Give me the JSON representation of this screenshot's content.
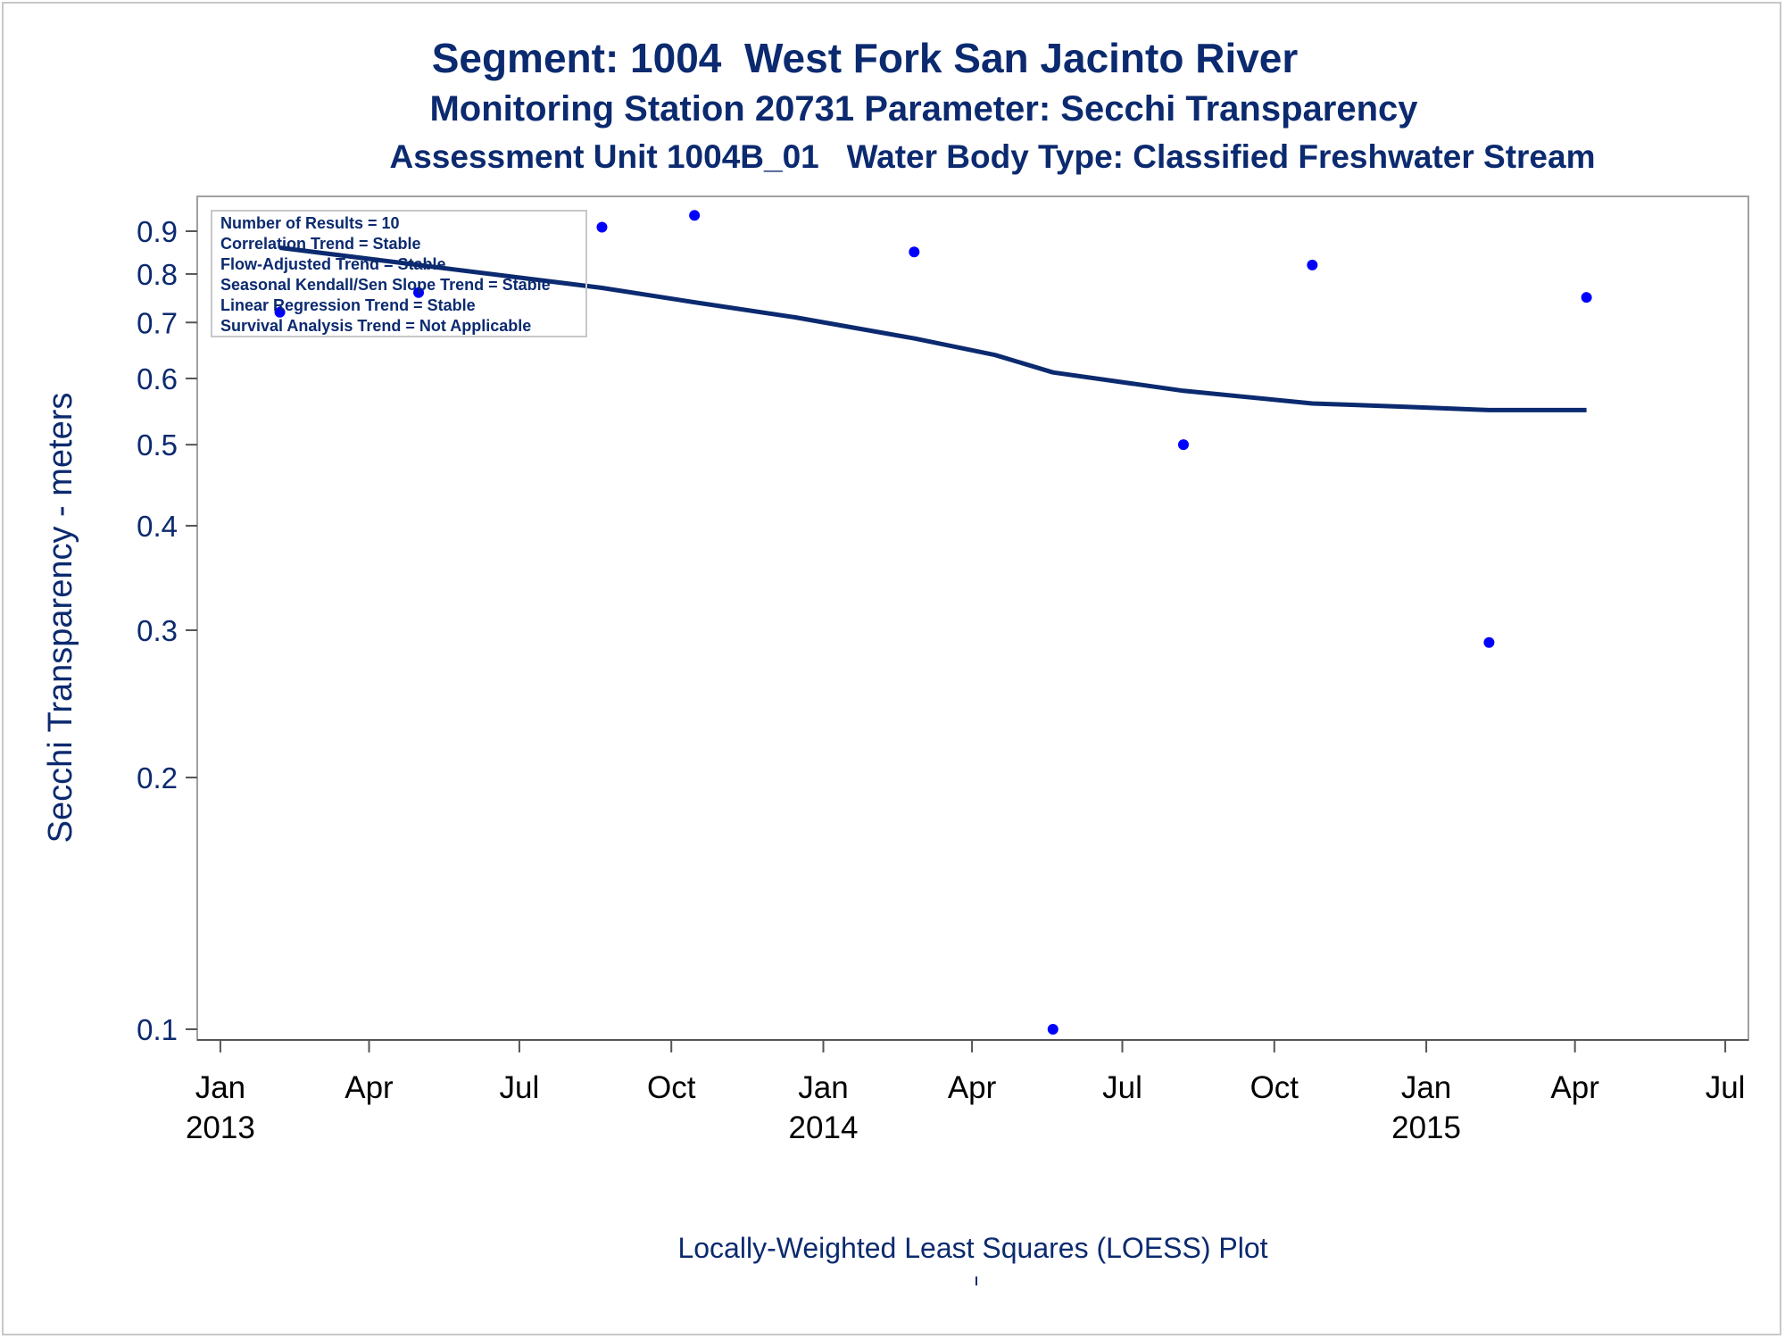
{
  "titles": {
    "line1": "Segment: 1004  West Fork San Jacinto River",
    "line2": "Monitoring Station 20731 Parameter: Secchi Transparency",
    "line3": "Assessment Unit 1004B_01   Water Body Type: Classified Freshwater Stream"
  },
  "footnote": "Locally-Weighted Least Squares (LOESS) Plot",
  "info_box": [
    "Number of Results = 10",
    "Correlation Trend = Stable",
    "Flow-Adjusted Trend = Stable",
    "Seasonal Kendall/Sen Slope Trend = Stable",
    "Linear Regression Trend = Stable",
    "Survival Analysis Trend = Not Applicable"
  ],
  "colors": {
    "title": "#0b2a6f",
    "points": "#0000ff",
    "loess": "#0b2a6f",
    "axis": "#a0a0a0"
  },
  "chart_data": {
    "type": "scatter",
    "ylabel": "Secchi Transparency - meters",
    "yscale": "log",
    "ylim": [
      0.1,
      0.95
    ],
    "xlim": [
      "2012-12-18",
      "2015-07-15"
    ],
    "x_ticks": [
      {
        "date": "2013-01-01",
        "label": "Jan",
        "year": "2013"
      },
      {
        "date": "2013-04-01",
        "label": "Apr",
        "year": ""
      },
      {
        "date": "2013-07-01",
        "label": "Jul",
        "year": ""
      },
      {
        "date": "2013-10-01",
        "label": "Oct",
        "year": ""
      },
      {
        "date": "2014-01-01",
        "label": "Jan",
        "year": "2014"
      },
      {
        "date": "2014-04-01",
        "label": "Apr",
        "year": ""
      },
      {
        "date": "2014-07-01",
        "label": "Jul",
        "year": ""
      },
      {
        "date": "2014-10-01",
        "label": "Oct",
        "year": ""
      },
      {
        "date": "2015-01-01",
        "label": "Jan",
        "year": "2015"
      },
      {
        "date": "2015-04-01",
        "label": "Apr",
        "year": ""
      },
      {
        "date": "2015-07-01",
        "label": "Jul",
        "year": ""
      }
    ],
    "y_ticks": [
      0.1,
      0.2,
      0.3,
      0.4,
      0.5,
      0.6,
      0.7,
      0.8,
      0.9
    ],
    "grid": false,
    "legend": "top-left",
    "points": [
      {
        "date": "2013-02-06",
        "value": 0.72
      },
      {
        "date": "2013-05-01",
        "value": 0.76
      },
      {
        "date": "2013-08-20",
        "value": 0.91
      },
      {
        "date": "2013-10-15",
        "value": 0.94
      },
      {
        "date": "2014-02-25",
        "value": 0.85
      },
      {
        "date": "2014-05-20",
        "value": 0.1
      },
      {
        "date": "2014-08-07",
        "value": 0.5
      },
      {
        "date": "2014-10-24",
        "value": 0.82
      },
      {
        "date": "2015-02-08",
        "value": 0.29
      },
      {
        "date": "2015-04-08",
        "value": 0.75
      }
    ],
    "loess": [
      {
        "date": "2013-02-06",
        "value": 0.86
      },
      {
        "date": "2013-05-01",
        "value": 0.82
      },
      {
        "date": "2013-08-20",
        "value": 0.77
      },
      {
        "date": "2013-10-15",
        "value": 0.74
      },
      {
        "date": "2013-12-15",
        "value": 0.71
      },
      {
        "date": "2014-02-25",
        "value": 0.67
      },
      {
        "date": "2014-04-15",
        "value": 0.64
      },
      {
        "date": "2014-05-20",
        "value": 0.61
      },
      {
        "date": "2014-08-07",
        "value": 0.58
      },
      {
        "date": "2014-10-24",
        "value": 0.56
      },
      {
        "date": "2014-12-20",
        "value": 0.555
      },
      {
        "date": "2015-02-08",
        "value": 0.55
      },
      {
        "date": "2015-04-08",
        "value": 0.55
      }
    ]
  }
}
